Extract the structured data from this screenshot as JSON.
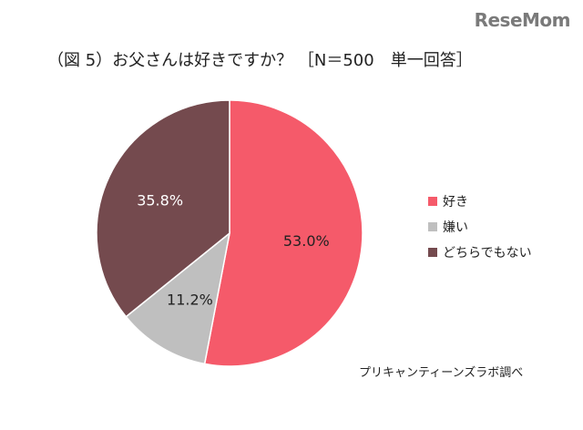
{
  "logo": "ReseMom",
  "chart_data": {
    "type": "pie",
    "title": "（図 5）お父さんは好きですか？ ［N＝500　単一回答］",
    "slices": [
      {
        "label": "好き",
        "value": 53.0,
        "display": "53.0%",
        "color": "#f55a6a"
      },
      {
        "label": "嫌い",
        "value": 11.2,
        "display": "11.2%",
        "color": "#bfbfbf"
      },
      {
        "label": "どちらでもない",
        "value": 35.8,
        "display": "35.8%",
        "color": "#744a4e"
      }
    ],
    "legend_position": "right",
    "source": "プリキャンティーンズラボ調べ"
  }
}
